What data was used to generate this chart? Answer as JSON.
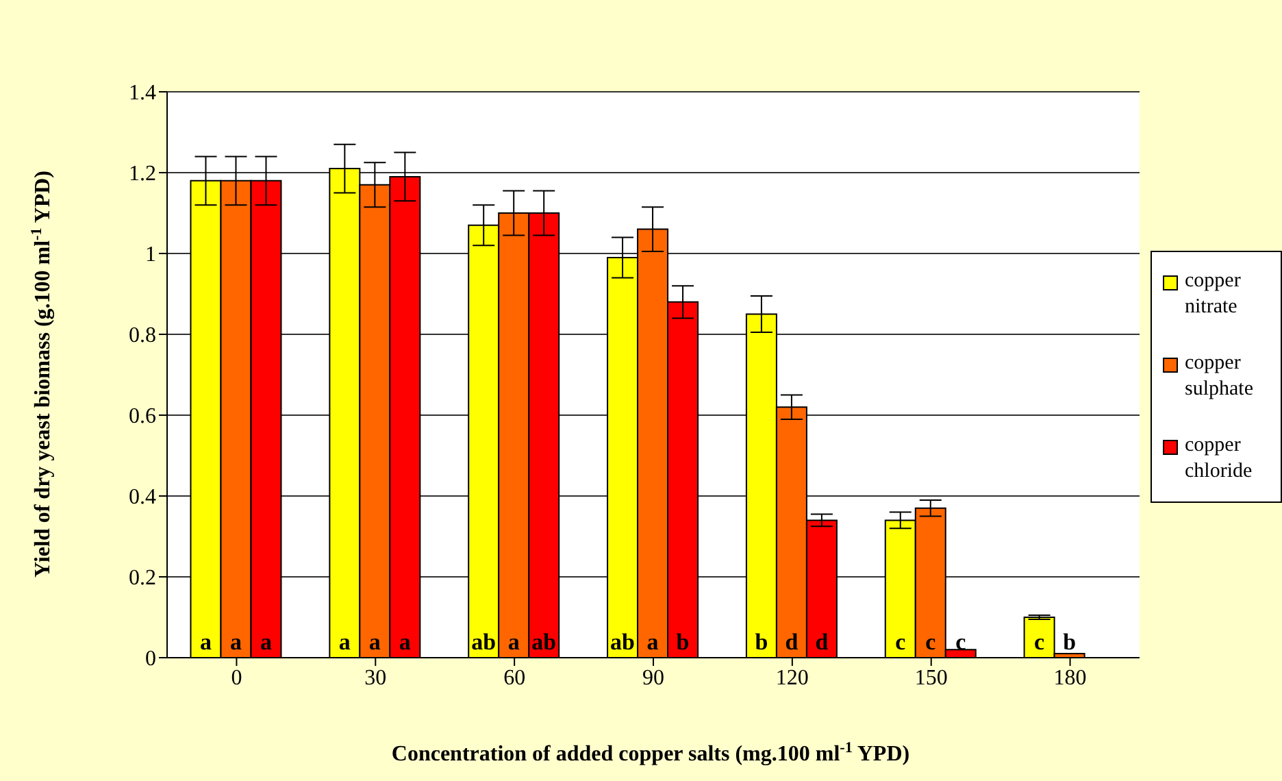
{
  "chart_data": {
    "type": "bar",
    "xlabel": "Concentration of added copper salts (mg.100 ml$^{-1}$ YPD)",
    "ylabel": "Yield of dry yeast biomass (g.100 ml$^{-1}$ YPD)",
    "categories": [
      "0",
      "30",
      "60",
      "90",
      "120",
      "150",
      "180"
    ],
    "series": [
      {
        "name": "copper nitrate",
        "color": "#ffff00",
        "values": [
          1.18,
          1.21,
          1.07,
          0.99,
          0.85,
          0.34,
          0.1
        ],
        "errors": [
          0.06,
          0.06,
          0.05,
          0.05,
          0.045,
          0.02,
          0.005
        ],
        "value_labels": [
          "a",
          "a",
          "ab",
          "ab",
          "b",
          "c",
          "c"
        ]
      },
      {
        "name": "copper sulphate",
        "color": "#ff6600",
        "values": [
          1.18,
          1.17,
          1.1,
          1.06,
          0.62,
          0.37,
          0.01
        ],
        "errors": [
          0.06,
          0.055,
          0.055,
          0.055,
          0.03,
          0.02,
          null
        ],
        "value_labels": [
          "a",
          "a",
          "a",
          "a",
          "d",
          "c",
          "b"
        ]
      },
      {
        "name": "copper chloride",
        "color": "#ff0000",
        "values": [
          1.18,
          1.19,
          1.1,
          0.88,
          0.34,
          0.02,
          null
        ],
        "errors": [
          0.06,
          0.06,
          0.055,
          0.04,
          0.015,
          null,
          null
        ],
        "value_labels": [
          "a",
          "a",
          "ab",
          "b",
          "d",
          "c",
          null
        ]
      }
    ],
    "ylim": [
      0,
      1.4
    ],
    "yticks": [
      0,
      0.2,
      0.4,
      0.6,
      0.8,
      1,
      1.2,
      1.4
    ],
    "grid": "y",
    "legend": "right"
  }
}
